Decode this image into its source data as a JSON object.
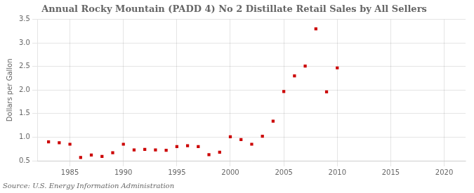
{
  "chart_data": {
    "type": "scatter",
    "title": "Annual Rocky Mountain (PADD 4) No 2 Distillate Retail Sales by All Sellers",
    "ylabel": "Dollars per Gallon",
    "annotations": [
      "Source: U.S. Energy Information Administration"
    ],
    "x": [
      1983,
      1984,
      1985,
      1986,
      1987,
      1988,
      1989,
      1990,
      1991,
      1992,
      1993,
      1994,
      1995,
      1996,
      1997,
      1998,
      1999,
      2000,
      2001,
      2002,
      2003,
      2004,
      2005,
      2006,
      2007,
      2008,
      2009,
      2010
    ],
    "values": [
      0.9,
      0.88,
      0.85,
      0.57,
      0.62,
      0.59,
      0.67,
      0.85,
      0.73,
      0.74,
      0.73,
      0.72,
      0.8,
      0.82,
      0.8,
      0.63,
      0.68,
      1.01,
      0.95,
      0.85,
      1.02,
      1.34,
      1.97,
      2.3,
      2.51,
      3.3,
      1.96,
      2.47
    ],
    "color": "#cc0000",
    "marker": "square",
    "xlim": [
      1982,
      2022
    ],
    "xticks": [
      1985,
      1990,
      1995,
      2000,
      2005,
      2010,
      2015,
      2020
    ],
    "ylim": [
      0.5,
      3.5
    ],
    "yticks": [
      0.5,
      {
        "value": 1.0,
        "label": "1.0"
      },
      1.5,
      {
        "value": 2.0,
        "label": "2.0"
      },
      2.5,
      {
        "value": 3.0,
        "label": "3.0"
      },
      3.5
    ],
    "grid": true
  }
}
